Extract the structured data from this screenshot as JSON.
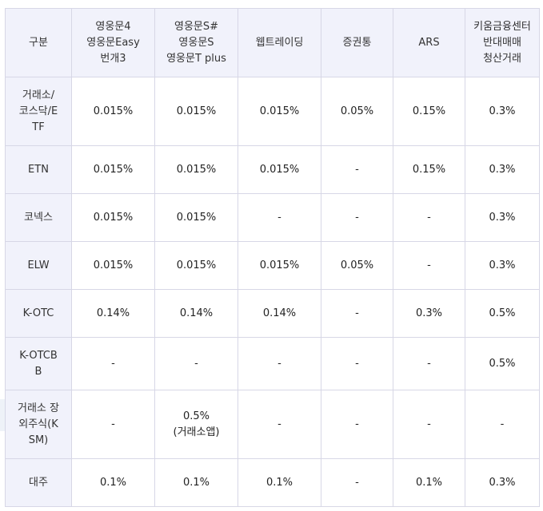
{
  "table": {
    "headers": [
      {
        "lines": [
          "구분"
        ]
      },
      {
        "lines": [
          "영웅문4",
          "영웅문Easy",
          "번개3"
        ]
      },
      {
        "lines": [
          "영웅문S#",
          "영웅문S",
          "영웅문T plus"
        ]
      },
      {
        "lines": [
          "웹트레이딩"
        ]
      },
      {
        "lines": [
          "증권통"
        ]
      },
      {
        "lines": [
          "ARS"
        ]
      },
      {
        "lines": [
          "키움금융센터",
          "반대매매",
          "청산거래"
        ]
      }
    ],
    "rows": [
      {
        "label_lines": [
          "거래소/",
          "코스닥/E",
          "TF"
        ],
        "cells": [
          "0.015%",
          "0.015%",
          "0.015%",
          "0.05%",
          "0.15%",
          "0.3%"
        ]
      },
      {
        "label_lines": [
          "ETN"
        ],
        "cells": [
          "0.015%",
          "0.015%",
          "0.015%",
          "-",
          "0.15%",
          "0.3%"
        ]
      },
      {
        "label_lines": [
          "코넥스"
        ],
        "cells": [
          "0.015%",
          "0.015%",
          "-",
          "-",
          "-",
          "0.3%"
        ]
      },
      {
        "label_lines": [
          "ELW"
        ],
        "cells": [
          "0.015%",
          "0.015%",
          "0.015%",
          "0.05%",
          "-",
          "0.3%"
        ]
      },
      {
        "label_lines": [
          "K-OTC"
        ],
        "cells": [
          "0.14%",
          "0.14%",
          "0.14%",
          "-",
          "0.3%",
          "0.5%"
        ]
      },
      {
        "label_lines": [
          "K-OTCB",
          "B"
        ],
        "cells": [
          "-",
          "-",
          "-",
          "-",
          "-",
          "0.5%"
        ]
      },
      {
        "label_lines": [
          "거래소 장",
          "외주식(K",
          "SM)"
        ],
        "cells": [
          "-",
          "0.5%",
          "-",
          "-",
          "-",
          "-"
        ],
        "cell_subs": [
          "",
          "(거래소앱)",
          "",
          "",
          "",
          ""
        ]
      },
      {
        "label_lines": [
          "대주"
        ],
        "cells": [
          "0.1%",
          "0.1%",
          "0.1%",
          "-",
          "0.1%",
          "0.3%"
        ]
      }
    ]
  }
}
